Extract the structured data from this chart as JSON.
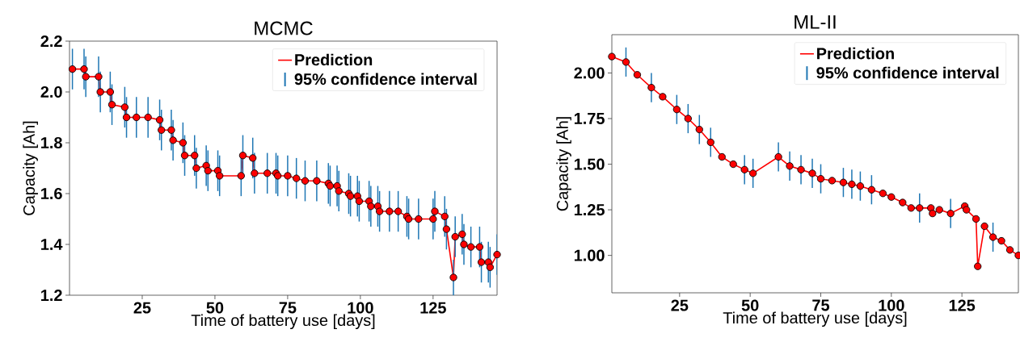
{
  "chart_data": [
    {
      "type": "line",
      "title": "MCMC",
      "xlabel": "Time of battery use [days]",
      "ylabel": "Capacity [Ah]",
      "legend": "top right",
      "marker": "circle",
      "line_style": "solid",
      "annotations": [
        "95% confidence interval"
      ],
      "xlim": [
        0,
        147
      ],
      "ylim": [
        1.2,
        2.2
      ],
      "xticks": [
        25,
        50,
        75,
        100,
        125
      ],
      "yticks": [
        {
          "value": 1.2,
          "label": "1.2"
        },
        {
          "value": 1.4,
          "label": "1.4"
        },
        {
          "value": 1.6,
          "label": "1.6"
        },
        {
          "value": 1.8,
          "label": "1.8"
        },
        {
          "value": 2.0,
          "label": "2.0"
        },
        {
          "value": 2.2,
          "label": "2.2"
        }
      ],
      "x": [
        1,
        5,
        5.6,
        10,
        10.6,
        14,
        14.6,
        19,
        19.6,
        23,
        27,
        31,
        31.6,
        35,
        35.6,
        39,
        39.6,
        43,
        43.6,
        47,
        47.6,
        51,
        51.6,
        59,
        59.6,
        63,
        63.6,
        68,
        71,
        71.6,
        75,
        78,
        81,
        85,
        89,
        89.6,
        92,
        92.6,
        96,
        96.6,
        99,
        99.6,
        103,
        103.6,
        106,
        106.6,
        110,
        113,
        116,
        116.6,
        120,
        125,
        125.6,
        129,
        129.6,
        132,
        132.6,
        135,
        135.6,
        138,
        141,
        141.6,
        144,
        144.6,
        147
      ],
      "series": [
        {
          "name": "Prediction",
          "color": "#ff0000",
          "values": [
            2.09,
            2.09,
            2.06,
            2.06,
            2.0,
            2.0,
            1.95,
            1.94,
            1.9,
            1.9,
            1.9,
            1.89,
            1.85,
            1.85,
            1.81,
            1.8,
            1.75,
            1.75,
            1.7,
            1.71,
            1.69,
            1.69,
            1.67,
            1.67,
            1.75,
            1.74,
            1.68,
            1.68,
            1.68,
            1.67,
            1.67,
            1.66,
            1.65,
            1.65,
            1.64,
            1.63,
            1.63,
            1.61,
            1.6,
            1.59,
            1.59,
            1.57,
            1.57,
            1.55,
            1.55,
            1.53,
            1.53,
            1.53,
            1.51,
            1.5,
            1.5,
            1.5,
            1.53,
            1.51,
            1.46,
            1.27,
            1.43,
            1.44,
            1.4,
            1.39,
            1.39,
            1.33,
            1.33,
            1.31,
            1.36
          ],
          "errors": [
            0.08,
            0.08,
            0.08,
            0.08,
            0.08,
            0.08,
            0.08,
            0.08,
            0.08,
            0.08,
            0.08,
            0.08,
            0.08,
            0.08,
            0.08,
            0.08,
            0.08,
            0.08,
            0.08,
            0.08,
            0.08,
            0.08,
            0.08,
            0.08,
            0.08,
            0.08,
            0.08,
            0.08,
            0.08,
            0.08,
            0.08,
            0.08,
            0.08,
            0.08,
            0.08,
            0.08,
            0.08,
            0.08,
            0.08,
            0.08,
            0.08,
            0.08,
            0.08,
            0.08,
            0.08,
            0.08,
            0.08,
            0.08,
            0.08,
            0.08,
            0.08,
            0.08,
            0.08,
            0.08,
            0.08,
            0.07,
            0.08,
            0.08,
            0.08,
            0.08,
            0.08,
            0.08,
            0.08,
            0.08,
            0.08
          ]
        }
      ]
    },
    {
      "type": "line",
      "title": "ML-II",
      "xlabel": "Time of battery use [days]",
      "ylabel": "Capacity [Ah]",
      "legend": "top right",
      "marker": "circle",
      "line_style": "solid",
      "annotations": [
        "95% confidence interval"
      ],
      "xlim": [
        1,
        145
      ],
      "ylim": [
        0.795,
        2.21
      ],
      "xticks": [
        25,
        50,
        75,
        100,
        125
      ],
      "yticks": [
        {
          "value": 1.0,
          "label": "1.00"
        },
        {
          "value": 1.25,
          "label": "1.25"
        },
        {
          "value": 1.5,
          "label": "1.50"
        },
        {
          "value": 1.75,
          "label": "1.75"
        },
        {
          "value": 2.0,
          "label": "2.00"
        }
      ],
      "x": [
        1,
        6,
        10,
        15,
        19,
        24,
        28,
        32,
        36,
        40,
        44,
        48,
        51,
        60,
        64,
        68,
        72,
        75,
        79,
        83,
        86,
        89,
        93,
        97,
        100,
        104,
        107,
        110,
        114,
        114.6,
        117,
        121,
        126,
        126.6,
        130,
        130.6,
        133,
        136,
        139,
        142,
        145
      ],
      "series": [
        {
          "name": "Prediction",
          "color": "#ff0000",
          "values": [
            2.09,
            2.06,
            1.99,
            1.92,
            1.87,
            1.8,
            1.75,
            1.69,
            1.62,
            1.54,
            1.5,
            1.47,
            1.45,
            1.54,
            1.49,
            1.47,
            1.45,
            1.42,
            1.41,
            1.4,
            1.39,
            1.38,
            1.36,
            1.34,
            1.32,
            1.29,
            1.26,
            1.26,
            1.26,
            1.23,
            1.25,
            1.23,
            1.27,
            1.25,
            1.2,
            0.94,
            1.16,
            1.1,
            1.08,
            1.03,
            1.0
          ],
          "errors": [
            null,
            0.08,
            null,
            0.08,
            null,
            0.08,
            0.08,
            0.08,
            0.08,
            null,
            null,
            0.08,
            0.08,
            0.08,
            0.08,
            0.08,
            0.08,
            0.08,
            null,
            0.08,
            0.08,
            0.08,
            0.08,
            null,
            null,
            null,
            null,
            0.08,
            null,
            null,
            null,
            0.08,
            null,
            null,
            null,
            null,
            null,
            0.08,
            null,
            null,
            null
          ]
        }
      ]
    }
  ]
}
